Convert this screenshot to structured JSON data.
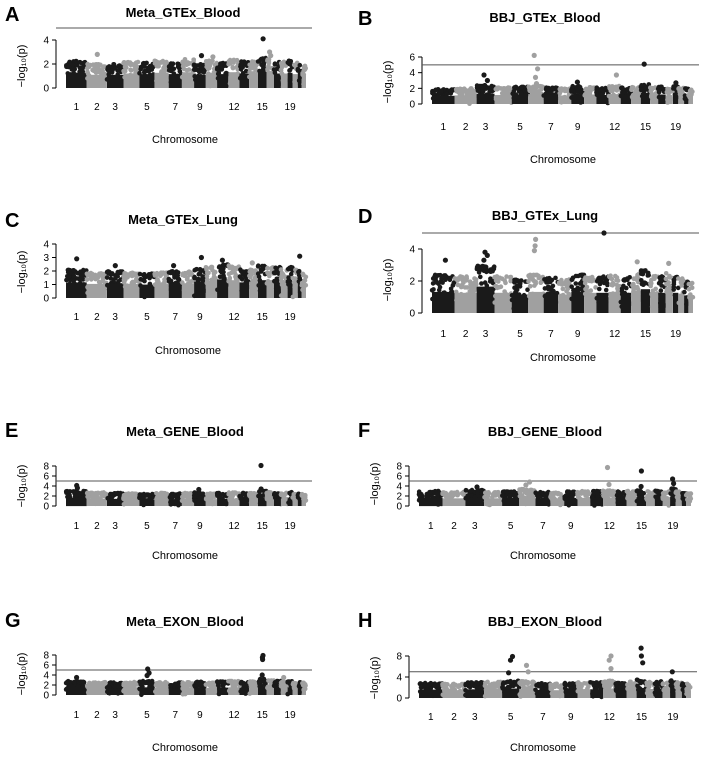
{
  "colors": {
    "dark": "#1a1a1a",
    "light": "#a0a0a0",
    "axis": "#000000",
    "threshold": "#555555"
  },
  "chart_data": [
    {
      "panel": "A",
      "type": "scatter",
      "title": "Meta_GTEx_Blood",
      "xlabel": "Chromosome",
      "ylabel": "−log₁₀(p)",
      "ylim": [
        0,
        5
      ],
      "yticks": [
        0,
        2,
        4
      ],
      "threshold": 5.0,
      "xtick_labels": [
        "1",
        "2",
        "3",
        "5",
        "7",
        "9",
        "12",
        "15",
        "19"
      ],
      "chromosome_tops": [
        2.3,
        2.0,
        2.0,
        2.2,
        2.1,
        2.3,
        2.1,
        2.4,
        2.0,
        2.3,
        2.1,
        2.4,
        2.2,
        2.3,
        2.5,
        2.4,
        2.2,
        2.2,
        2.3,
        2.1,
        2.0,
        1.9
      ],
      "peaks": [
        {
          "chr": 2,
          "value": 2.8
        },
        {
          "chr": 9,
          "value": 2.7
        },
        {
          "chr": 10,
          "value": 2.6
        },
        {
          "chr": 15,
          "value": 4.1
        },
        {
          "chr": 16,
          "value": 3.0
        },
        {
          "chr": 16,
          "value": 2.7
        }
      ]
    },
    {
      "panel": "B",
      "type": "scatter",
      "title": "BBJ_GTEx_Blood",
      "xlabel": "Chromosome",
      "ylabel": "−log₁₀(p)",
      "ylim": [
        0,
        6.5
      ],
      "yticks": [
        0,
        2,
        4,
        6
      ],
      "threshold": 5.0,
      "xtick_labels": [
        "1",
        "2",
        "3",
        "5",
        "7",
        "9",
        "12",
        "15",
        "19"
      ],
      "chromosome_tops": [
        1.9,
        2.0,
        2.4,
        2.1,
        2.2,
        2.3,
        2.1,
        2.0,
        2.3,
        2.2,
        2.1,
        2.3,
        2.1,
        2.2,
        2.6,
        2.3,
        2.2,
        2.0,
        2.3,
        2.1,
        2.0,
        1.9
      ],
      "peaks": [
        {
          "chr": 3,
          "value": 3.7
        },
        {
          "chr": 3,
          "value": 3.0
        },
        {
          "chr": 6,
          "value": 6.2
        },
        {
          "chr": 6,
          "value": 4.5
        },
        {
          "chr": 6,
          "value": 3.4
        },
        {
          "chr": 6,
          "value": 2.6
        },
        {
          "chr": 9,
          "value": 2.8
        },
        {
          "chr": 12,
          "value": 3.7
        },
        {
          "chr": 15,
          "value": 5.1
        },
        {
          "chr": 19,
          "value": 2.7
        }
      ]
    },
    {
      "panel": "C",
      "type": "scatter",
      "title": "Meta_GTEx_Lung",
      "xlabel": "Chromosome",
      "ylabel": "−log₁₀(p)",
      "ylim": [
        0,
        4.2
      ],
      "yticks": [
        0,
        1,
        2,
        3,
        4
      ],
      "threshold": null,
      "xtick_labels": [
        "1",
        "2",
        "3",
        "5",
        "7",
        "9",
        "12",
        "15",
        "19"
      ],
      "chromosome_tops": [
        2.1,
        1.9,
        2.0,
        1.9,
        1.8,
        1.9,
        2.0,
        2.0,
        2.2,
        2.3,
        2.5,
        2.4,
        2.1,
        2.2,
        2.4,
        2.3,
        2.3,
        2.2,
        2.3,
        2.1,
        2.0,
        1.8
      ],
      "peaks": [
        {
          "chr": 1,
          "value": 2.9
        },
        {
          "chr": 3,
          "value": 2.4
        },
        {
          "chr": 7,
          "value": 2.4
        },
        {
          "chr": 9,
          "value": 3.0
        },
        {
          "chr": 11,
          "value": 2.8
        },
        {
          "chr": 14,
          "value": 2.6
        },
        {
          "chr": 21,
          "value": 3.1
        }
      ]
    },
    {
      "panel": "D",
      "type": "scatter",
      "title": "BBJ_GTEx_Lung",
      "xlabel": "Chromosome",
      "ylabel": "−log₁₀(p)",
      "ylim": [
        0,
        5.3
      ],
      "yticks": [
        0,
        2,
        4
      ],
      "threshold": 5.0,
      "xtick_labels": [
        "1",
        "2",
        "3",
        "5",
        "7",
        "9",
        "12",
        "15",
        "19"
      ],
      "chromosome_tops": [
        2.4,
        2.3,
        3.0,
        2.3,
        2.1,
        2.4,
        2.2,
        2.1,
        2.4,
        2.3,
        2.3,
        2.4,
        2.3,
        2.5,
        2.7,
        2.4,
        2.3,
        2.5,
        2.3,
        2.2,
        2.0,
        1.9
      ],
      "peaks": [
        {
          "chr": 1,
          "value": 3.3
        },
        {
          "chr": 3,
          "value": 3.8
        },
        {
          "chr": 3,
          "value": 3.6
        },
        {
          "chr": 3,
          "value": 3.3
        },
        {
          "chr": 6,
          "value": 4.6
        },
        {
          "chr": 6,
          "value": 4.2
        },
        {
          "chr": 6,
          "value": 3.9
        },
        {
          "chr": 11,
          "value": 5.0
        },
        {
          "chr": 14,
          "value": 3.2
        },
        {
          "chr": 18,
          "value": 3.1
        }
      ]
    },
    {
      "panel": "E",
      "type": "scatter",
      "title": "Meta_GENE_Blood",
      "xlabel": "Chromosome",
      "ylabel": "−log₁₀(p)",
      "ylim": [
        0,
        9
      ],
      "yticks": [
        0,
        2,
        4,
        6,
        8
      ],
      "threshold": 5.0,
      "xtick_labels": [
        "1",
        "2",
        "3",
        "5",
        "7",
        "9",
        "12",
        "15",
        "19"
      ],
      "chromosome_tops": [
        3.0,
        2.7,
        2.6,
        2.5,
        2.4,
        2.6,
        2.5,
        2.6,
        2.7,
        2.5,
        2.6,
        2.7,
        2.6,
        2.7,
        3.0,
        2.8,
        2.7,
        2.7,
        2.8,
        2.6,
        2.5,
        2.4
      ],
      "peaks": [
        {
          "chr": 1,
          "value": 4.1
        },
        {
          "chr": 1,
          "value": 3.6
        },
        {
          "chr": 9,
          "value": 3.3
        },
        {
          "chr": 15,
          "value": 8.1
        },
        {
          "chr": 15,
          "value": 3.4
        }
      ]
    },
    {
      "panel": "F",
      "type": "scatter",
      "title": "BBJ_GENE_Blood",
      "xlabel": "Chromosome",
      "ylabel": "−log₁₀(p)",
      "ylim": [
        0,
        8.5
      ],
      "yticks": [
        0,
        2,
        4,
        6,
        8
      ],
      "threshold": 5.0,
      "xtick_labels": [
        "1",
        "2",
        "3",
        "5",
        "7",
        "9",
        "12",
        "15",
        "19"
      ],
      "chromosome_tops": [
        3.0,
        2.8,
        3.2,
        2.8,
        2.9,
        3.4,
        2.8,
        2.7,
        2.9,
        3.0,
        3.0,
        3.1,
        2.9,
        3.0,
        3.2,
        3.0,
        3.1,
        2.9,
        3.5,
        2.9,
        2.7,
        2.6
      ],
      "peaks": [
        {
          "chr": 3,
          "value": 3.8
        },
        {
          "chr": 6,
          "value": 4.8
        },
        {
          "chr": 6,
          "value": 4.2
        },
        {
          "chr": 12,
          "value": 7.7
        },
        {
          "chr": 12,
          "value": 4.3
        },
        {
          "chr": 15,
          "value": 7.0
        },
        {
          "chr": 15,
          "value": 3.9
        },
        {
          "chr": 19,
          "value": 5.4
        },
        {
          "chr": 19,
          "value": 4.5
        }
      ]
    },
    {
      "panel": "G",
      "type": "scatter",
      "title": "Meta_EXON_Blood",
      "xlabel": "Chromosome",
      "ylabel": "−log₁₀(p)",
      "ylim": [
        0,
        8.5
      ],
      "yticks": [
        0,
        2,
        4,
        6,
        8
      ],
      "threshold": 5.0,
      "xtick_labels": [
        "1",
        "2",
        "3",
        "5",
        "7",
        "9",
        "12",
        "15",
        "19"
      ],
      "chromosome_tops": [
        2.8,
        2.6,
        2.5,
        2.6,
        2.8,
        2.6,
        2.5,
        2.6,
        2.7,
        2.6,
        2.7,
        2.8,
        2.6,
        2.7,
        3.2,
        2.9,
        2.8,
        2.7,
        2.8,
        2.7,
        2.6,
        2.5
      ],
      "peaks": [
        {
          "chr": 1,
          "value": 3.5
        },
        {
          "chr": 5,
          "value": 5.2
        },
        {
          "chr": 5,
          "value": 4.4
        },
        {
          "chr": 5,
          "value": 3.9
        },
        {
          "chr": 15,
          "value": 7.9
        },
        {
          "chr": 15,
          "value": 7.5
        },
        {
          "chr": 15,
          "value": 7.1
        },
        {
          "chr": 15,
          "value": 4.0
        },
        {
          "chr": 18,
          "value": 3.5
        }
      ]
    },
    {
      "panel": "H",
      "type": "scatter",
      "title": "BBJ_EXON_Blood",
      "xlabel": "Chromosome",
      "ylabel": "−log₁₀(p)",
      "ylim": [
        0,
        10
      ],
      "yticks": [
        0,
        4,
        8
      ],
      "threshold": 5.0,
      "xtick_labels": [
        "1",
        "2",
        "3",
        "5",
        "7",
        "9",
        "12",
        "15",
        "19"
      ],
      "chromosome_tops": [
        2.9,
        2.7,
        3.0,
        3.1,
        3.3,
        3.2,
        2.8,
        2.7,
        2.9,
        3.0,
        3.0,
        3.3,
        3.0,
        3.1,
        3.5,
        3.1,
        3.2,
        3.0,
        3.4,
        3.0,
        2.8,
        2.7
      ],
      "peaks": [
        {
          "chr": 5,
          "value": 7.9
        },
        {
          "chr": 5,
          "value": 7.2
        },
        {
          "chr": 5,
          "value": 4.8
        },
        {
          "chr": 6,
          "value": 6.2
        },
        {
          "chr": 6,
          "value": 5.0
        },
        {
          "chr": 12,
          "value": 8.0
        },
        {
          "chr": 12,
          "value": 7.2
        },
        {
          "chr": 12,
          "value": 5.6
        },
        {
          "chr": 15,
          "value": 9.5
        },
        {
          "chr": 15,
          "value": 8.0
        },
        {
          "chr": 15,
          "value": 6.7
        },
        {
          "chr": 19,
          "value": 5.0
        }
      ]
    }
  ]
}
